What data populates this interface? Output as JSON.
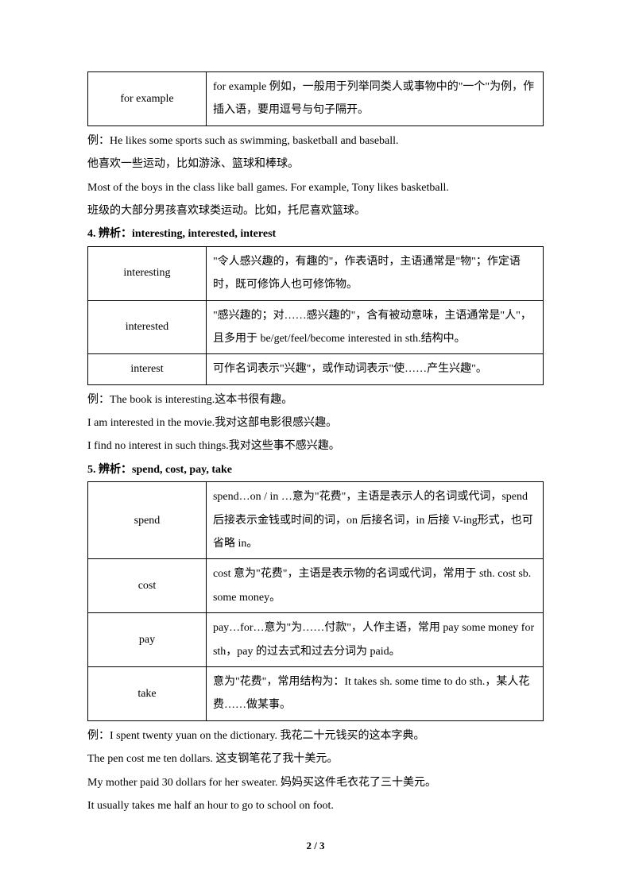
{
  "table1": {
    "term": "for example",
    "desc": "for example 例如，一般用于列举同类人或事物中的\"一个\"为例，作插入语，要用逗号与句子隔开。"
  },
  "examples1": [
    "例：He likes some sports such as swimming, basketball and baseball.",
    "他喜欢一些运动，比如游泳、篮球和棒球。",
    "Most of the boys in the class like ball games. For example, Tony likes basketball.",
    "班级的大部分男孩喜欢球类运动。比如，托尼喜欢篮球。"
  ],
  "heading4": "4. 辨析：interesting, interested, interest",
  "table2": {
    "rows": [
      {
        "term": "interesting",
        "desc": "\"令人感兴趣的，有趣的\"，作表语时，主语通常是\"物\"；作定语时，既可修饰人也可修饰物。"
      },
      {
        "term": "interested",
        "desc": "\"感兴趣的；对……感兴趣的\"，含有被动意味，主语通常是\"人\"，且多用于 be/get/feel/become interested in sth.结构中。"
      },
      {
        "term": "interest",
        "desc": "可作名词表示\"兴趣\"，或作动词表示\"使……产生兴趣\"。"
      }
    ]
  },
  "examples2": [
    "例：The book is interesting.这本书很有趣。",
    "I am interested in the movie.我对这部电影很感兴趣。",
    "I find no interest in such things.我对这些事不感兴趣。"
  ],
  "heading5": "5. 辨析：spend, cost, pay, take",
  "table3": {
    "rows": [
      {
        "term": "spend",
        "desc": "spend…on / in …意为\"花费\"，主语是表示人的名词或代词，spend 后接表示金钱或时间的词，on 后接名词，in 后接 V-ing形式，也可省略 in。"
      },
      {
        "term": "cost",
        "desc": "cost 意为\"花费\"，主语是表示物的名词或代词，常用于 sth. cost sb. some money。"
      },
      {
        "term": "pay",
        "desc": "pay…for…意为\"为……付款\"，人作主语，常用 pay some money for sth，pay 的过去式和过去分词为 paid。"
      },
      {
        "term": "take",
        "desc": "意为\"花费\"，常用结构为：It takes sh. some time to do sth.，某人花费……做某事。"
      }
    ]
  },
  "examples3": [
    "例：I spent twenty yuan on the dictionary.  我花二十元钱买的这本字典。",
    "The pen cost me ten dollars.  这支钢笔花了我十美元。",
    "My mother paid 30 dollars for her sweater.  妈妈买这件毛衣花了三十美元。",
    "It usually takes me half an hour to go to school on foot."
  ],
  "footer": "2 / 3"
}
